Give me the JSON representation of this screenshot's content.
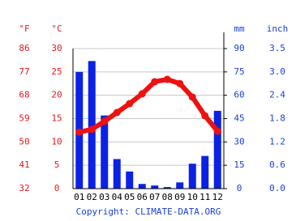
{
  "chart_data": {
    "type": "combo",
    "y_label": "°C",
    "y_f_label": "°F",
    "y2_label": "mm",
    "y2_inch_label": "inch",
    "categories": [
      "01",
      "02",
      "03",
      "04",
      "05",
      "06",
      "07",
      "08",
      "09",
      "10",
      "11",
      "12"
    ],
    "ylim": [
      0,
      30
    ],
    "yticks": [
      0,
      5,
      10,
      15,
      20,
      25,
      30
    ],
    "yticks_f": [
      {
        "value": 0,
        "label": "32"
      },
      {
        "value": 5,
        "label": "41"
      },
      {
        "value": 10,
        "label": "50"
      },
      {
        "value": 15,
        "label": "59"
      },
      {
        "value": 20,
        "label": "68"
      },
      {
        "value": 25,
        "label": "77"
      },
      {
        "value": 30,
        "label": "86"
      }
    ],
    "y2lim": [
      0,
      90
    ],
    "y2ticks": [
      0,
      15,
      30,
      45,
      60,
      75,
      90
    ],
    "y2ticks_inch": [
      {
        "value": 0,
        "label": "0.0"
      },
      {
        "value": 15,
        "label": "0.6"
      },
      {
        "value": 30,
        "label": "1.2"
      },
      {
        "value": 45,
        "label": "1.8"
      },
      {
        "value": 60,
        "label": "2.4"
      },
      {
        "value": 75,
        "label": "3.0"
      },
      {
        "value": 90,
        "label": "3.5"
      }
    ],
    "grid": true,
    "series": [
      {
        "type": "bar",
        "axis": "y2",
        "color": "#0b22e6",
        "values": [
          75,
          82,
          47,
          19,
          11,
          3,
          2,
          1,
          4,
          16,
          21,
          50
        ]
      },
      {
        "type": "line",
        "axis": "y",
        "color": "#ee1111",
        "values": [
          12.1,
          12.7,
          14.4,
          16.3,
          18.2,
          20.3,
          22.9,
          23.4,
          22.5,
          19.6,
          15.6,
          12.3
        ]
      }
    ],
    "copyright": "Copyright: CLIMATE-DATA.ORG"
  }
}
